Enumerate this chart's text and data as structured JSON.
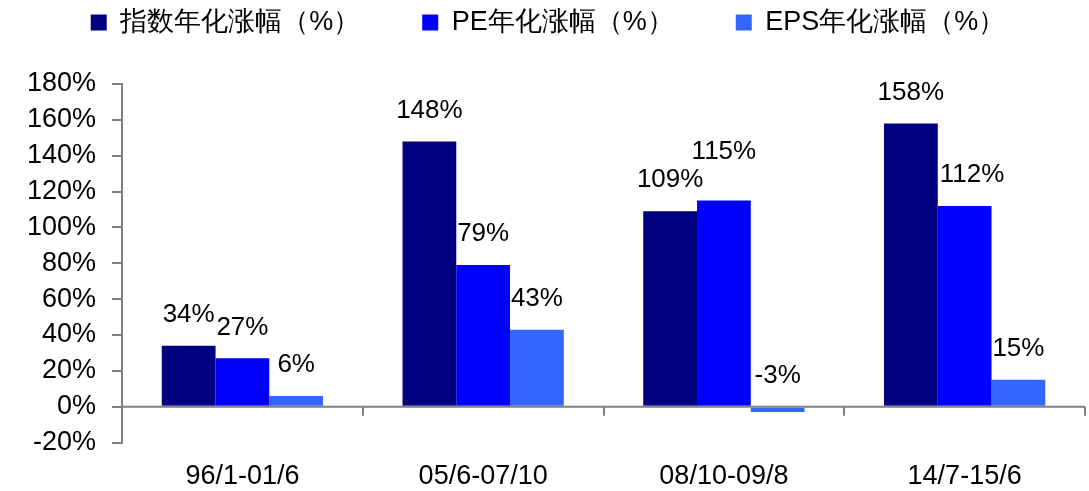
{
  "chart_data": {
    "type": "bar",
    "categories": [
      "96/1-01/6",
      "05/6-07/10",
      "08/10-09/8",
      "14/7-15/6"
    ],
    "series": [
      {
        "name": "指数年化涨幅（%）",
        "color": "#000080",
        "values": [
          34,
          148,
          109,
          158
        ],
        "value_labels": [
          "34%",
          "148%",
          "109%",
          "158%"
        ]
      },
      {
        "name": "PE年化涨幅（%）",
        "color": "#0000ff",
        "values": [
          27,
          79,
          115,
          112
        ],
        "value_labels": [
          "27%",
          "79%",
          "115%",
          "112%"
        ]
      },
      {
        "name": "EPS年化涨幅（%）",
        "color": "#3366ff",
        "values": [
          6,
          43,
          -3,
          15
        ],
        "value_labels": [
          "6%",
          "43%",
          "-3%",
          "15%"
        ]
      }
    ],
    "ylim": [
      -20,
      180
    ],
    "yticks": [
      {
        "value": -20,
        "label": "-20%"
      },
      {
        "value": 0,
        "label": "0%"
      },
      {
        "value": 20,
        "label": "20%"
      },
      {
        "value": 40,
        "label": "40%"
      },
      {
        "value": 60,
        "label": "60%"
      },
      {
        "value": 80,
        "label": "80%"
      },
      {
        "value": 100,
        "label": "100%"
      },
      {
        "value": 120,
        "label": "120%"
      },
      {
        "value": 140,
        "label": "140%"
      },
      {
        "value": 160,
        "label": "160%"
      },
      {
        "value": 180,
        "label": "180%"
      }
    ],
    "grid": false,
    "legend": "top"
  }
}
